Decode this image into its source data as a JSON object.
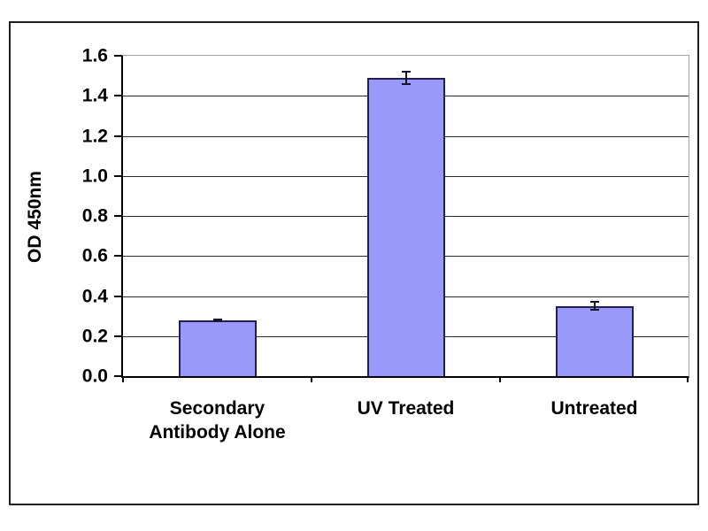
{
  "chart_data": {
    "type": "bar",
    "title": "",
    "xlabel": "",
    "ylabel": "OD 450nm",
    "categories": [
      "Secondary Antibody Alone",
      "UV Treated",
      "Untreated"
    ],
    "values": [
      0.28,
      1.49,
      0.35
    ],
    "errors": [
      0.005,
      0.03,
      0.02
    ],
    "ylim": [
      0,
      1.6
    ],
    "ytick_labels": [
      "0.0",
      "0.2",
      "0.4",
      "0.6",
      "0.8",
      "1.0",
      "1.2",
      "1.4",
      "1.6"
    ],
    "grid": true,
    "legend": false,
    "colors": {
      "bar_fill": "#9999FA",
      "bar_border": "#20204E",
      "gridline": "#2b2b2b",
      "axis": "#000000",
      "plot_border": "#a3a3a3",
      "error_bar": "#14142e",
      "background": "#ffffff",
      "frame_border": "#1f1f1f"
    }
  }
}
